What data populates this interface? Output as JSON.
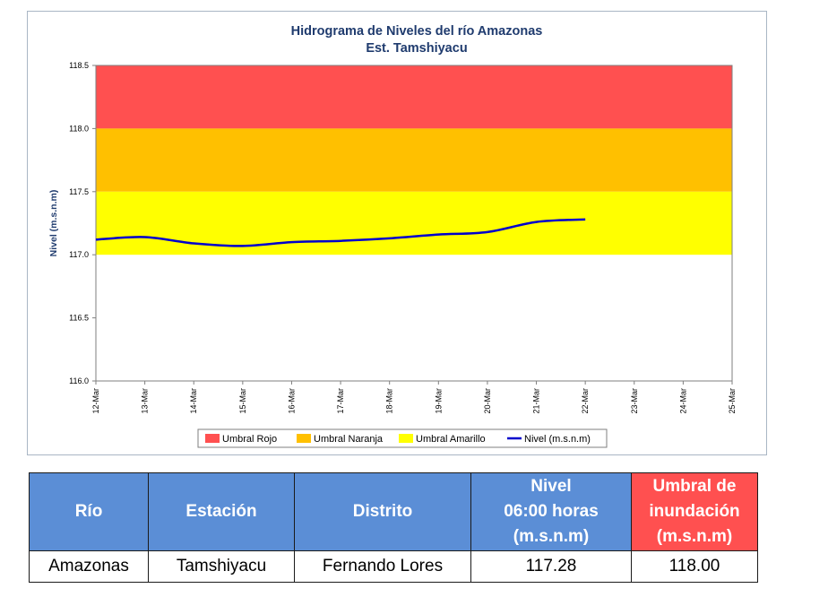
{
  "chart_data": {
    "type": "line",
    "title": "Hidrograma de Niveles del río Amazonas",
    "subtitle": "Est. Tamshiyacu",
    "ylabel": "Nivel (m.s.n.m)",
    "xlabel": "",
    "ylim": [
      116.0,
      118.5
    ],
    "yticks": [
      "116.0",
      "116.5",
      "117.0",
      "117.5",
      "118.0",
      "118.5"
    ],
    "categories": [
      "12-Mar",
      "13-Mar",
      "14-Mar",
      "15-Mar",
      "16-Mar",
      "17-Mar",
      "18-Mar",
      "19-Mar",
      "20-Mar",
      "21-Mar",
      "22-Mar",
      "23-Mar",
      "24-Mar",
      "25-Mar"
    ],
    "bands": [
      {
        "name": "Umbral Rojo",
        "from": 118.0,
        "to": 118.5,
        "color": "#ff5050"
      },
      {
        "name": "Umbral Naranja",
        "from": 117.5,
        "to": 118.0,
        "color": "#ffc000"
      },
      {
        "name": "Umbral Amarillo",
        "from": 117.0,
        "to": 117.5,
        "color": "#ffff00"
      }
    ],
    "series": [
      {
        "name": "Nivel (m.s.n.m)",
        "color": "#0000cc",
        "x": [
          "12-Mar",
          "13-Mar",
          "14-Mar",
          "15-Mar",
          "16-Mar",
          "17-Mar",
          "18-Mar",
          "19-Mar",
          "20-Mar",
          "21-Mar",
          "22-Mar"
        ],
        "values": [
          117.12,
          117.14,
          117.09,
          117.07,
          117.1,
          117.11,
          117.13,
          117.16,
          117.18,
          117.26,
          117.28
        ]
      }
    ],
    "legend": [
      "Umbral Rojo",
      "Umbral Naranja",
      "Umbral Amarillo",
      "Nivel (m.s.n.m)"
    ],
    "legend_position": "bottom",
    "grid": false
  },
  "table": {
    "headers": {
      "rio": "Río",
      "estacion": "Estación",
      "distrito": "Distrito",
      "nivel": [
        "Nivel",
        "06:00 horas",
        "(m.s.n.m)"
      ],
      "umbral": [
        "Umbral de",
        "inundación",
        "(m.s.n.m)"
      ]
    },
    "row": {
      "rio": "Amazonas",
      "estacion": "Tamshiyacu",
      "distrito": "Fernando Lores",
      "nivel": "117.28",
      "umbral": "118.00"
    }
  }
}
